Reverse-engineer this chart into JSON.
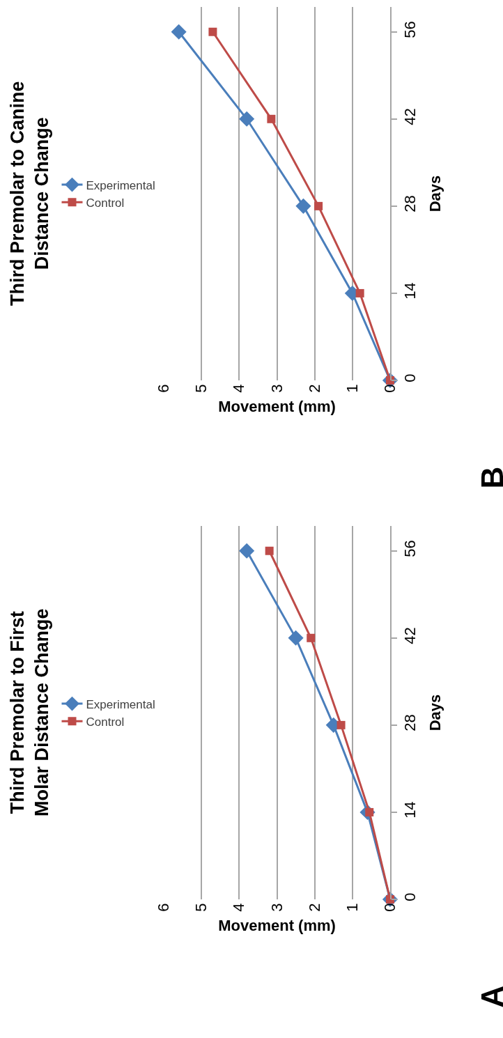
{
  "chart_data": [
    {
      "type": "line",
      "title": "Third Premolar to First\nMolar Distance Change",
      "xlabel": "Movement (mm)",
      "ylabel": "Days",
      "annotations": [
        "A"
      ],
      "xlim": [
        6,
        0
      ],
      "xticks": [
        0,
        1,
        2,
        3,
        4,
        5,
        6
      ],
      "ylim": [
        0,
        60
      ],
      "yticks": [
        0,
        14,
        28,
        42,
        56
      ],
      "grid": "x",
      "legend": "left",
      "series": [
        {
          "name": "Experimental",
          "color": "#4a7ebb",
          "marker": "diamond",
          "x": [
            0,
            0.6,
            1.5,
            2.5,
            3.8
          ],
          "values": [
            0,
            14,
            28,
            42,
            56
          ]
        },
        {
          "name": "Control",
          "color": "#be4b48",
          "marker": "square",
          "x": [
            0,
            0.55,
            1.3,
            2.1,
            3.2
          ],
          "values": [
            0,
            14,
            28,
            42,
            56
          ]
        }
      ]
    },
    {
      "type": "line",
      "title": "Third Premolar to Canine\nDistance Change",
      "xlabel": "Movement (mm)",
      "ylabel": "Days",
      "annotations": [
        "B"
      ],
      "xlim": [
        6,
        0
      ],
      "xticks": [
        0,
        1,
        2,
        3,
        4,
        5,
        6
      ],
      "ylim": [
        0,
        60
      ],
      "yticks": [
        0,
        14,
        28,
        42,
        56
      ],
      "grid": "x",
      "legend": "left",
      "series": [
        {
          "name": "Experimental",
          "color": "#4a7ebb",
          "marker": "diamond",
          "x": [
            0,
            1.0,
            2.3,
            3.8,
            5.6
          ],
          "values": [
            0,
            14,
            28,
            42,
            56
          ]
        },
        {
          "name": "Control",
          "color": "#be4b48",
          "marker": "square",
          "x": [
            0,
            0.8,
            1.9,
            3.15,
            4.7
          ],
          "values": [
            0,
            14,
            28,
            42,
            56
          ]
        }
      ]
    }
  ]
}
